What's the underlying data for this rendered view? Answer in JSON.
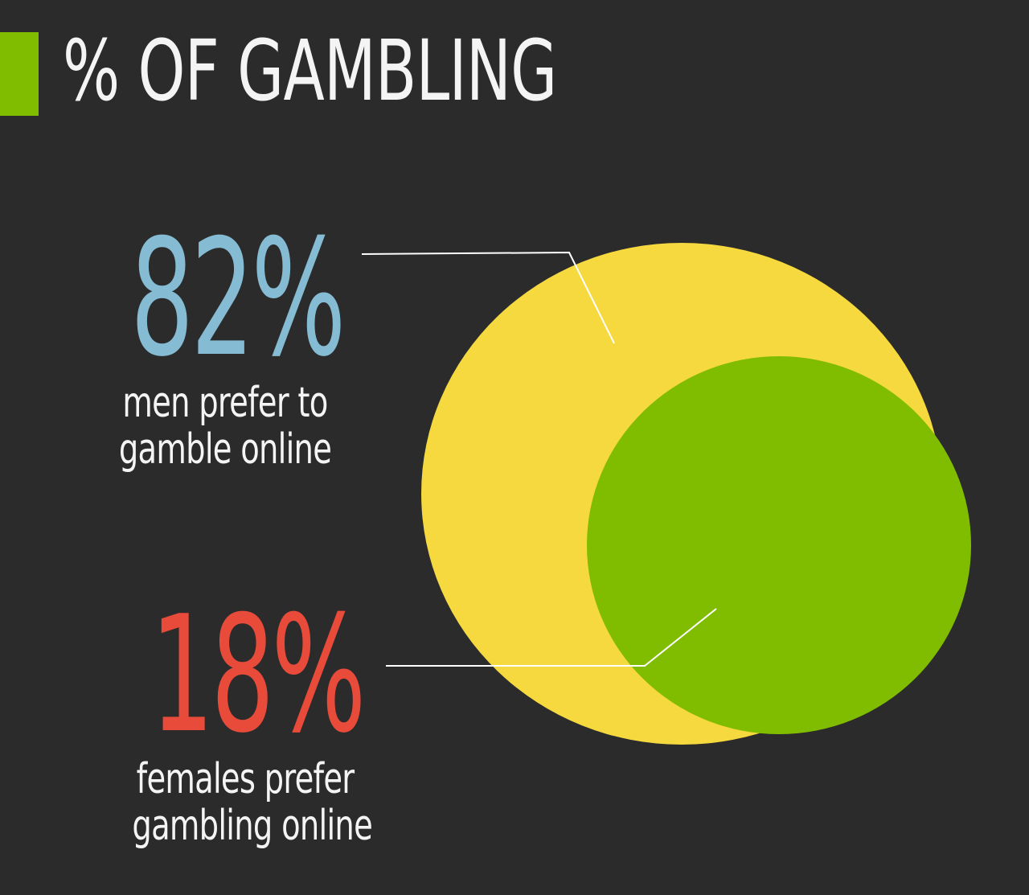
{
  "title": "% OF GAMBLING",
  "colors": {
    "background": "#2b2b2b",
    "accent": "#80bd00",
    "men": "#85bcd4",
    "female": "#e84b3a",
    "yellow_circle": "#f5d93e",
    "green_circle": "#80bd00",
    "leader_line": "#ffffff"
  },
  "stats": {
    "men": {
      "value": "82%",
      "caption_line1": "men prefer to",
      "caption_line2": "gamble online"
    },
    "female": {
      "value": "18%",
      "caption_line1": "females prefer",
      "caption_line2": "gambling online"
    }
  },
  "chart_data": {
    "type": "area",
    "categories": [
      "men",
      "females"
    ],
    "values": [
      82,
      18
    ],
    "unit": "%",
    "labels": [
      "82%",
      "18%"
    ]
  }
}
